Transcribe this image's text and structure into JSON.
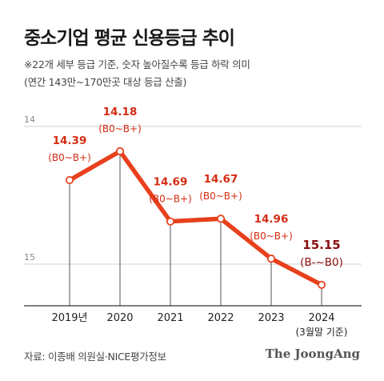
{
  "title": "중소기업 평균 신용등급 추이",
  "notes": [
    "※22개 세부 등급 기준, 숫자 높아질수록 등급 하락 의미",
    "(연간 143만~170만곳 대상 등급 산출)"
  ],
  "source": "자료: 이종배 의원실·NICE평가정보",
  "brand": "The JoongAng",
  "colors": {
    "line": "#e8401c",
    "label": "#d42b12",
    "last_label": "#8b0e0e",
    "grid": "#cfcfcf",
    "axis": "#333333"
  },
  "chart_data": {
    "type": "line",
    "categories": [
      "2019년",
      "2020",
      "2021",
      "2022",
      "2023",
      "2024"
    ],
    "category_notes": [
      "",
      "",
      "",
      "",
      "",
      "(3월말 기준)"
    ],
    "values": [
      14.39,
      14.18,
      14.69,
      14.67,
      14.96,
      15.15
    ],
    "value_labels": [
      "14.39",
      "14.18",
      "14.69",
      "14.67",
      "14.96",
      "15.15"
    ],
    "grade_labels": [
      "(B0~B+)",
      "(B0~B+)",
      "(B0~B+)",
      "(B0~B+)",
      "(B0~B+)",
      "(B-~B0)"
    ],
    "y_ticks": [
      14,
      15
    ],
    "y_inverted": true,
    "ylim": [
      14,
      15.25
    ],
    "grid": true
  }
}
